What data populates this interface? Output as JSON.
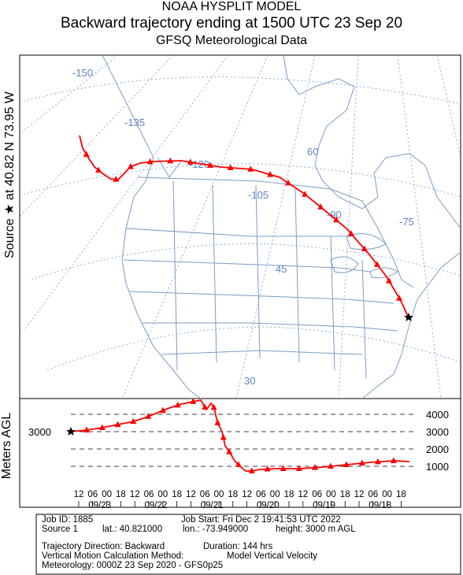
{
  "header": {
    "line1": "NOAA HYSPLIT MODEL",
    "line2": "Backward trajectory ending at 1500 UTC 23 Sep 20",
    "line3": "GFSQ Meteorological Data"
  },
  "side_label": "Source ★ at 40.82 N 73.95 W",
  "map": {
    "meridian_labels": [
      "-150",
      "-135",
      "-120",
      "-105",
      "-90",
      "-75"
    ],
    "parallel_labels": [
      "60",
      "45",
      "30"
    ],
    "colors": {
      "border": "#7a9cc8",
      "grid": "#7a9cc8",
      "trajectory": "#ff0000",
      "label": "#5b84bf"
    }
  },
  "height_panel": {
    "ylabel": "Meters AGL",
    "start_label": "3000",
    "right_ticks": [
      "4000",
      "3000",
      "2000",
      "1000"
    ]
  },
  "time_axis": {
    "hour_labels": [
      "12",
      "06",
      "00",
      "18",
      "12",
      "06",
      "00",
      "18",
      "12",
      "06",
      "00",
      "18",
      "12",
      "06",
      "00",
      "18",
      "12",
      "06",
      "00",
      "18",
      "12",
      "06",
      "00",
      "18"
    ],
    "date_labels": [
      "09/23",
      "09/22",
      "09/21",
      "09/20",
      "09/19",
      "09/18"
    ]
  },
  "info": {
    "job_id": "Job ID: 1885",
    "job_start": "Job Start: Fri Dec  2 19:41:53 UTC 2022",
    "source": "Source 1",
    "lat": "lat.: 40.821000",
    "lon": "lon.: -73.949000",
    "height": "height: 3000 m AGL",
    "direction": "Trajectory Direction: Backward",
    "duration": "Duration: 144 hrs",
    "vertical": "Vertical Motion Calculation Method:",
    "vertical_value": "Model Vertical Velocity",
    "meteorology": "Meteorology: 0000Z 23 Sep 2020 - GFS0p25"
  }
}
